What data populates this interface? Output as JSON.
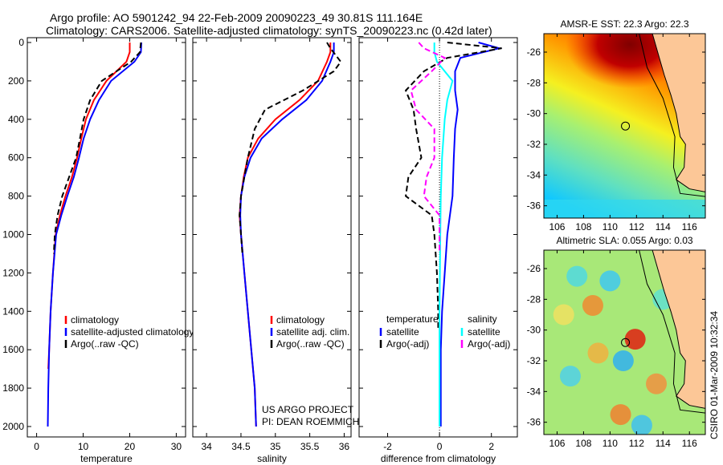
{
  "title": {
    "line1": "Argo profile: AO 5901242_94 22-Feb-2009 20090223_49 30.81S 111.164E",
    "line2": "Climatology: CARS2006. Satellite-adjusted climatology: synTS_20090223.nc (0.42d later)"
  },
  "side_label": "CSIRO 01-Mar-2009 10:32:34",
  "project": {
    "line1": "US ARGO PROJECT",
    "line2": "PI: DEAN ROEMMICH"
  },
  "colors": {
    "climatology": "#ff0000",
    "satellite": "#0000ff",
    "argo": "#000000",
    "sal_satellite": "#00ffff",
    "sal_argo": "#ff00ff",
    "land": "#fcc797"
  },
  "chart_data": [
    {
      "type": "line",
      "xlabel": "temperature",
      "ylabel": "",
      "xlim": [
        -2,
        32
      ],
      "ylim": [
        2000,
        0
      ],
      "xticks": [
        0,
        10,
        20,
        30
      ],
      "yticks": [
        0,
        200,
        400,
        600,
        800,
        1000,
        1200,
        1400,
        1600,
        1800,
        2000
      ],
      "legend": [
        "climatology",
        "satellite-adjusted climatology",
        "Argo(..raw -QC)"
      ],
      "legend_position": "lower-right",
      "series": [
        {
          "name": "climatology",
          "color": "#ff0000",
          "dash": false,
          "depth": [
            0,
            50,
            100,
            200,
            300,
            400,
            500,
            600,
            700,
            800,
            900,
            1000,
            1200,
            1400,
            1600,
            1700
          ],
          "values": [
            20,
            20,
            19.3,
            15,
            12.3,
            10.6,
            9.6,
            8.7,
            7.6,
            6.2,
            5,
            4.1,
            3.5,
            3,
            2.7,
            2.5
          ]
        },
        {
          "name": "satellite-adjusted climatology",
          "color": "#0000ff",
          "dash": false,
          "depth": [
            0,
            50,
            100,
            200,
            300,
            400,
            500,
            600,
            700,
            800,
            900,
            1000,
            1200,
            1400,
            1600,
            1800,
            2000
          ],
          "values": [
            22.5,
            22.4,
            21,
            16,
            13.4,
            11.5,
            10.1,
            9.1,
            8,
            6.6,
            5.3,
            4.2,
            3.5,
            3,
            2.7,
            2.5,
            2.4
          ]
        },
        {
          "name": "Argo(..raw -QC)",
          "color": "#000000",
          "dash": true,
          "depth": [
            0,
            50,
            100,
            200,
            300,
            400,
            500,
            600,
            700,
            800,
            900,
            1000,
            1100
          ],
          "values": [
            22.4,
            22.2,
            20.3,
            14,
            11.5,
            10.1,
            9.3,
            8.5,
            7,
            5.5,
            4.5,
            3.9,
            3.7
          ]
        }
      ]
    },
    {
      "type": "line",
      "xlabel": "salinity",
      "ylabel": "",
      "xlim": [
        33.8,
        36.1
      ],
      "ylim": [
        2000,
        0
      ],
      "xticks": [
        34,
        34.5,
        35,
        35.5,
        36
      ],
      "legend": [
        "climatology",
        "satellite adj. clim.",
        "Argo(..raw -QC)"
      ],
      "legend_position": "lower-right",
      "series": [
        {
          "name": "climatology",
          "color": "#ff0000",
          "dash": false,
          "depth": [
            0,
            50,
            100,
            200,
            300,
            400,
            500,
            600,
            700,
            800,
            900,
            1000,
            1200,
            1400,
            1600,
            1800,
            2000
          ],
          "values": [
            35.8,
            35.8,
            35.75,
            35.62,
            35.35,
            35.0,
            34.75,
            34.6,
            34.54,
            34.5,
            34.48,
            34.5,
            34.55,
            34.6,
            34.65,
            34.7,
            34.72
          ]
        },
        {
          "name": "satellite adj. clim.",
          "color": "#0000ff",
          "dash": false,
          "depth": [
            0,
            50,
            100,
            200,
            300,
            400,
            500,
            600,
            700,
            800,
            900,
            1000,
            1200,
            1400,
            1600,
            1800,
            2000
          ],
          "values": [
            35.85,
            35.85,
            35.8,
            35.68,
            35.45,
            35.1,
            34.8,
            34.64,
            34.55,
            34.5,
            34.49,
            34.5,
            34.55,
            34.6,
            34.65,
            34.7,
            34.72
          ]
        },
        {
          "name": "Argo(..raw -QC)",
          "color": "#000000",
          "dash": true,
          "depth": [
            0,
            30,
            100,
            150,
            250,
            350,
            450,
            600,
            700,
            800,
            900,
            1000,
            1100
          ],
          "values": [
            35.75,
            35.8,
            35.95,
            35.85,
            35.4,
            34.85,
            34.7,
            34.6,
            34.55,
            34.5,
            34.48,
            34.5,
            34.52
          ]
        }
      ]
    },
    {
      "type": "line",
      "xlabel": "difference from climatology",
      "ylabel": "",
      "xlim": [
        -3.1,
        3
      ],
      "ylim": [
        2000,
        0
      ],
      "xticks": [
        -2,
        0,
        2
      ],
      "legend": {
        "temperature_header": "temperature",
        "salinity_header": "salinity",
        "entries": [
          "satellite",
          "Argo(-adj)",
          "satellite",
          "Argo(-adj)"
        ]
      },
      "legend_position": "lower-center",
      "series": [
        {
          "name": "temperature satellite",
          "color": "#0000ff",
          "dash": false,
          "depth": [
            0,
            30,
            80,
            150,
            250,
            350,
            450,
            600,
            800,
            1000,
            1200,
            1400,
            1600,
            2000
          ],
          "values": [
            1.5,
            2.3,
            0.8,
            0.6,
            0.6,
            0.7,
            0.6,
            0.55,
            0.5,
            0.3,
            0.2,
            0.1,
            0.05,
            0.05
          ]
        },
        {
          "name": "temperature Argo(-adj)",
          "color": "#000000",
          "dash": true,
          "depth": [
            0,
            30,
            80,
            150,
            250,
            350,
            450,
            600,
            700,
            800,
            900,
            1000,
            1200,
            1400,
            1500
          ],
          "values": [
            0.3,
            2.4,
            0.3,
            -0.6,
            -1.3,
            -1,
            -0.9,
            -0.7,
            -1.2,
            -1.3,
            -0.3,
            -0.2,
            -0.1,
            -0.05,
            -0.05
          ]
        },
        {
          "name": "salinity satellite",
          "color": "#00ffff",
          "dash": false,
          "depth": [
            0,
            50,
            100,
            200,
            300,
            400,
            600,
            800,
            1000,
            1400,
            2000
          ],
          "values": [
            -0.2,
            -0.2,
            -0.1,
            0.5,
            0.3,
            0.2,
            0.1,
            0.05,
            0.03,
            0,
            0
          ]
        },
        {
          "name": "salinity Argo(-adj)",
          "color": "#ff00ff",
          "dash": true,
          "depth": [
            0,
            30,
            80,
            150,
            250,
            350,
            450,
            600,
            700,
            800,
            900,
            1000,
            1100
          ],
          "values": [
            -0.8,
            -0.6,
            0.2,
            -0.3,
            -1.1,
            -0.9,
            -0.2,
            -0.2,
            -0.5,
            -0.6,
            0,
            0,
            0
          ]
        }
      ]
    },
    {
      "type": "heatmap",
      "title": "AMSR-E SST: 22.3 Argo: 22.3",
      "xlim": [
        105,
        117.2
      ],
      "ylim": [
        -36.8,
        -24.8
      ],
      "xticks": [
        106,
        108,
        110,
        112,
        114,
        116
      ],
      "yticks": [
        -26,
        -28,
        -30,
        -32,
        -34,
        -36
      ],
      "marker": {
        "lon": 111.164,
        "lat": -30.81
      }
    },
    {
      "type": "heatmap",
      "title": "Altimetric SLA: 0.055 Argo: 0.03",
      "xlim": [
        105,
        117.2
      ],
      "ylim": [
        -36.8,
        -24.8
      ],
      "xticks": [
        106,
        108,
        110,
        112,
        114,
        116
      ],
      "yticks": [
        -26,
        -28,
        -30,
        -32,
        -34,
        -36
      ],
      "marker": {
        "lon": 111.164,
        "lat": -30.81
      }
    }
  ]
}
